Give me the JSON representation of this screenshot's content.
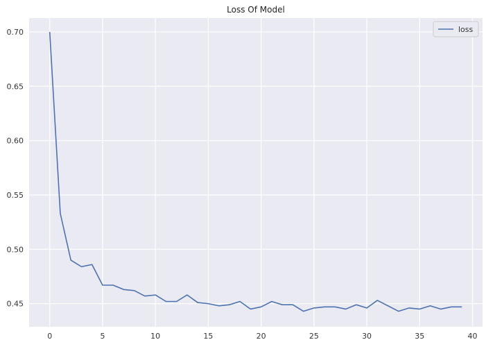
{
  "chart_data": {
    "type": "line",
    "title": "Loss Of Model",
    "xlabel": "",
    "ylabel": "",
    "xlim": [
      -1.95,
      40.95
    ],
    "ylim": [
      0.4287,
      0.7128
    ],
    "x_ticks": [
      0,
      5,
      10,
      15,
      20,
      25,
      30,
      35,
      40
    ],
    "y_ticks": [
      0.45,
      0.5,
      0.55,
      0.6,
      0.65,
      0.7
    ],
    "y_tick_labels": [
      "0.45",
      "0.50",
      "0.55",
      "0.60",
      "0.65",
      "0.70"
    ],
    "grid": true,
    "legend_position": "top-right",
    "series": [
      {
        "name": "loss",
        "color": "#4c72b0",
        "x": [
          0,
          1,
          2,
          3,
          4,
          5,
          6,
          7,
          8,
          9,
          10,
          11,
          12,
          13,
          14,
          15,
          16,
          17,
          18,
          19,
          20,
          21,
          22,
          23,
          24,
          25,
          26,
          27,
          28,
          29,
          30,
          31,
          32,
          33,
          34,
          35,
          36,
          37,
          38,
          39
        ],
        "y": [
          0.7,
          0.533,
          0.49,
          0.484,
          0.486,
          0.467,
          0.467,
          0.463,
          0.462,
          0.457,
          0.458,
          0.452,
          0.452,
          0.458,
          0.451,
          0.45,
          0.448,
          0.449,
          0.452,
          0.445,
          0.447,
          0.452,
          0.449,
          0.449,
          0.443,
          0.446,
          0.447,
          0.447,
          0.445,
          0.449,
          0.446,
          0.453,
          0.448,
          0.443,
          0.446,
          0.445,
          0.448,
          0.445,
          0.447,
          0.447
        ]
      }
    ]
  }
}
